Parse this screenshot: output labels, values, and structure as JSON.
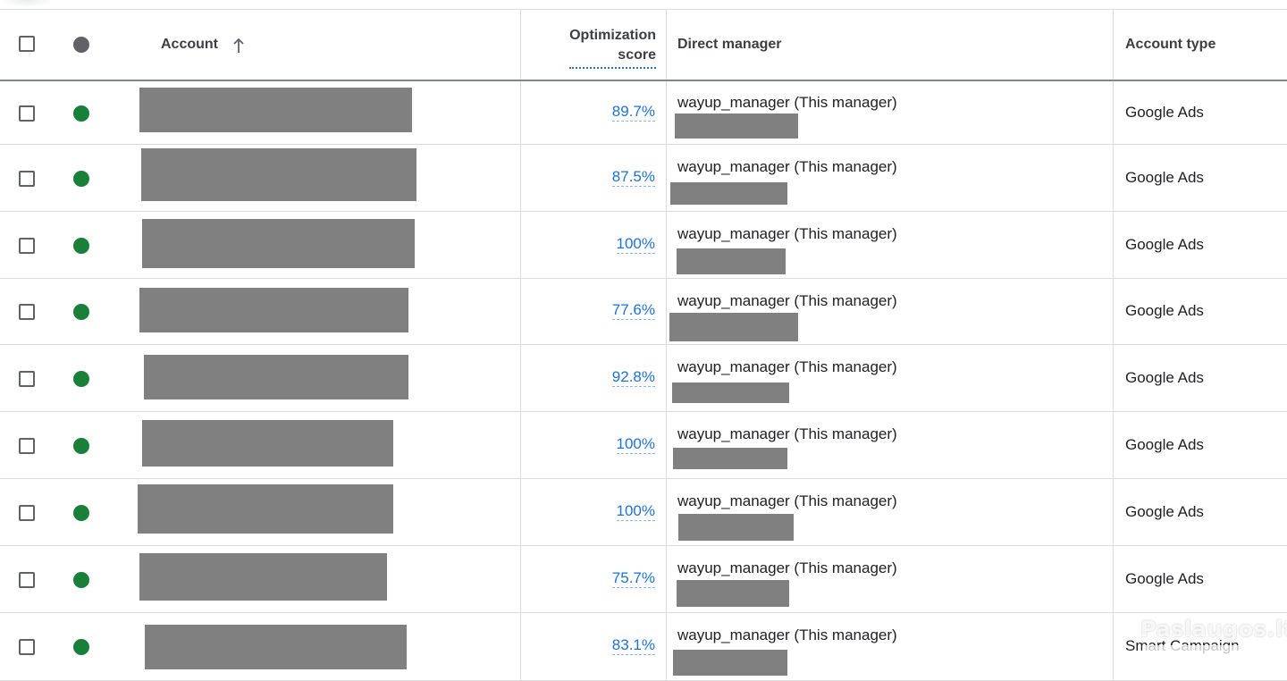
{
  "header": {
    "account_label": "Account",
    "score_label_line1": "Optimization",
    "score_label_line2": "score",
    "manager_label": "Direct manager",
    "type_label": "Account type"
  },
  "colors": {
    "status_enabled": "#188038",
    "status_header": "#5f6368",
    "link": "#1a73e8",
    "redaction": "#808080"
  },
  "rows": [
    {
      "score": "89.7%",
      "manager": "wayup_manager (This manager)",
      "type": "Google Ads"
    },
    {
      "score": "87.5%",
      "manager": "wayup_manager (This manager)",
      "type": "Google Ads"
    },
    {
      "score": "100%",
      "manager": "wayup_manager (This manager)",
      "type": "Google Ads"
    },
    {
      "score": "77.6%",
      "manager": "wayup_manager (This manager)",
      "type": "Google Ads"
    },
    {
      "score": "92.8%",
      "manager": "wayup_manager (This manager)",
      "type": "Google Ads"
    },
    {
      "score": "100%",
      "manager": "wayup_manager (This manager)",
      "type": "Google Ads"
    },
    {
      "score": "100%",
      "manager": "wayup_manager (This manager)",
      "type": "Google Ads"
    },
    {
      "score": "75.7%",
      "manager": "wayup_manager (This manager)",
      "type": "Google Ads"
    },
    {
      "score": "83.1%",
      "manager": "wayup_manager (This manager)",
      "type": "Smart Campaign"
    }
  ],
  "watermark": "Paslaugos.lt"
}
